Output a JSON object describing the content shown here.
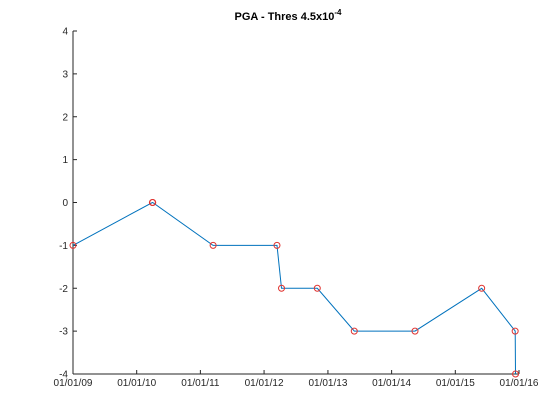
{
  "chart_data": {
    "type": "line",
    "title_main": "PGA - Thres 4.5x10",
    "title_sup": "-4",
    "xlabel": "",
    "ylabel": "",
    "x_axis_type": "date",
    "xlim": [
      "2009-01-01",
      "2016-01-01"
    ],
    "ylim": [
      -4,
      4
    ],
    "xticks": [
      "2009-01-01",
      "2010-01-01",
      "2011-01-01",
      "2012-01-01",
      "2013-01-01",
      "2014-01-01",
      "2015-01-01",
      "2016-01-01"
    ],
    "xtick_labels": [
      "01/01/09",
      "01/01/10",
      "01/01/11",
      "01/01/12",
      "01/01/13",
      "01/01/14",
      "01/01/15",
      "01/01/16"
    ],
    "yticks": [
      -4,
      -3,
      -2,
      -1,
      0,
      1,
      2,
      3,
      4
    ],
    "ytick_labels": [
      "-4",
      "-3",
      "-2",
      "-1",
      "0",
      "1",
      "2",
      "3",
      "4"
    ],
    "grid": false,
    "legend": "none",
    "series": [
      {
        "x": [
          "2009-01-01",
          "2010-04-01",
          "2010-04-03",
          "2011-03-15",
          "2012-03-15",
          "2012-04-10",
          "2012-11-01",
          "2013-06-01",
          "2014-05-15",
          "2015-06-01",
          "2015-12-10",
          "2015-12-12"
        ],
        "y": [
          -1,
          0,
          0,
          -1,
          -1,
          -2,
          -2,
          -3,
          -3,
          -2,
          -3,
          -4
        ],
        "line_color": "#0072bd",
        "marker": "circle",
        "marker_color": "#e0332f"
      }
    ]
  }
}
